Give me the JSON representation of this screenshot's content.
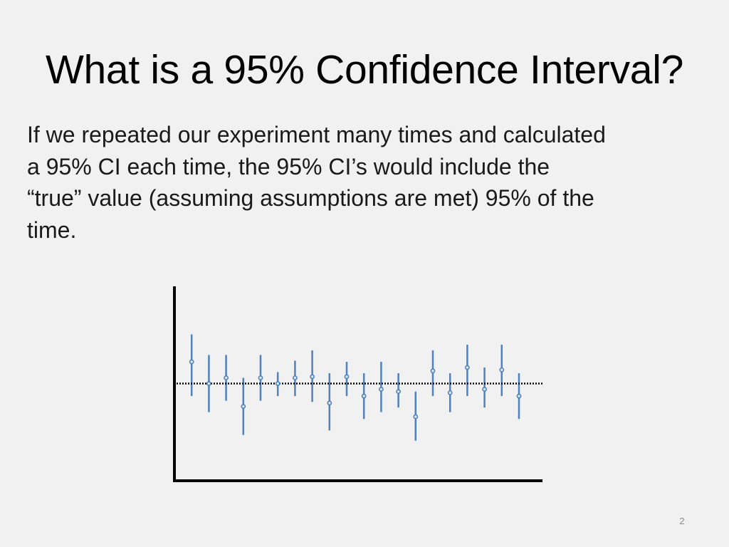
{
  "slide": {
    "title": "What is a 95% Confidence Interval?",
    "body_lines": [
      "If we repeated our experiment many times and calculated",
      "a 95% CI each time, the 95% CI’s would include the",
      "“true” value (assuming assumptions are met) 95% of the",
      "time."
    ],
    "page_number": "2"
  },
  "colors": {
    "interval": "#4f81bd",
    "point_fill": "#dfe8f4",
    "axis": "#000000",
    "true_value_line": "#000000"
  },
  "chart_data": {
    "type": "scatter",
    "title": "",
    "xlabel": "",
    "ylabel": "",
    "xlim": [
      0,
      21
    ],
    "ylim": [
      0,
      17
    ],
    "x_ticks": false,
    "y_ticks": false,
    "grid": false,
    "true_value": 8.5,
    "true_value_style": "dotted",
    "intervals": [
      {
        "x": 1,
        "estimate": 10.4,
        "lower": 7.4,
        "upper": 12.8
      },
      {
        "x": 2,
        "estimate": 8.5,
        "lower": 6.0,
        "upper": 11.0
      },
      {
        "x": 3,
        "estimate": 9.0,
        "lower": 7.0,
        "upper": 11.0
      },
      {
        "x": 4,
        "estimate": 6.5,
        "lower": 4.0,
        "upper": 9.0
      },
      {
        "x": 5,
        "estimate": 9.0,
        "lower": 7.0,
        "upper": 11.0
      },
      {
        "x": 6,
        "estimate": 8.5,
        "lower": 7.4,
        "upper": 9.5
      },
      {
        "x": 7,
        "estimate": 9.0,
        "lower": 7.4,
        "upper": 10.5
      },
      {
        "x": 8,
        "estimate": 9.1,
        "lower": 6.9,
        "upper": 11.4
      },
      {
        "x": 9,
        "estimate": 6.8,
        "lower": 4.4,
        "upper": 9.4
      },
      {
        "x": 10,
        "estimate": 9.1,
        "lower": 7.4,
        "upper": 10.4
      },
      {
        "x": 11,
        "estimate": 7.4,
        "lower": 5.4,
        "upper": 9.4
      },
      {
        "x": 12,
        "estimate": 8.0,
        "lower": 6.0,
        "upper": 10.4
      },
      {
        "x": 13,
        "estimate": 7.8,
        "lower": 6.4,
        "upper": 9.4
      },
      {
        "x": 14,
        "estimate": 5.6,
        "lower": 3.5,
        "upper": 7.8
      },
      {
        "x": 15,
        "estimate": 9.6,
        "lower": 7.4,
        "upper": 11.4
      },
      {
        "x": 16,
        "estimate": 7.7,
        "lower": 6.0,
        "upper": 9.4
      },
      {
        "x": 17,
        "estimate": 9.9,
        "lower": 7.4,
        "upper": 11.9
      },
      {
        "x": 18,
        "estimate": 8.0,
        "lower": 6.4,
        "upper": 9.9
      },
      {
        "x": 19,
        "estimate": 9.7,
        "lower": 7.4,
        "upper": 11.9
      },
      {
        "x": 20,
        "estimate": 7.4,
        "lower": 5.4,
        "upper": 9.4
      }
    ]
  }
}
